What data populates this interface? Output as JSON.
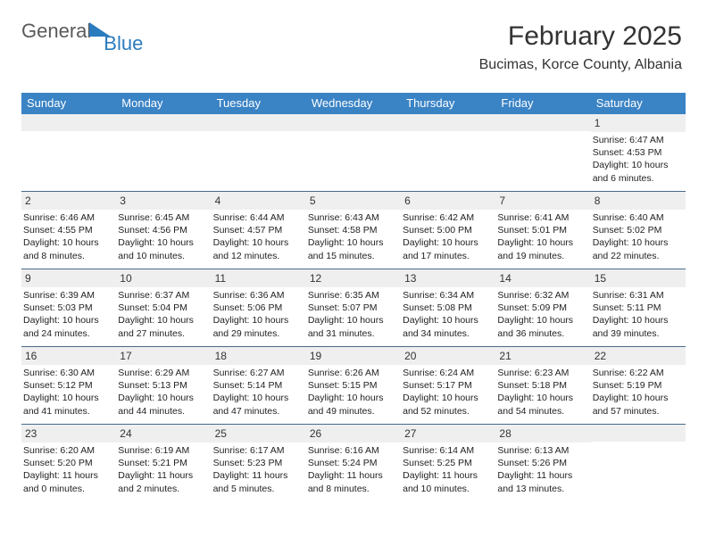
{
  "logo": {
    "general": "General",
    "blue": "Blue"
  },
  "header": {
    "month": "February 2025",
    "location": "Bucimas, Korce County, Albania"
  },
  "colors": {
    "header_bar": "#3a83c5",
    "day_num_bg": "#efefef",
    "week_border": "#4a6a8a",
    "logo_blue": "#2b7bbf",
    "text": "#333333"
  },
  "weekdays": [
    "Sunday",
    "Monday",
    "Tuesday",
    "Wednesday",
    "Thursday",
    "Friday",
    "Saturday"
  ],
  "weeks": [
    [
      null,
      null,
      null,
      null,
      null,
      null,
      {
        "n": "1",
        "sr": "Sunrise: 6:47 AM",
        "ss": "Sunset: 4:53 PM",
        "dl": "Daylight: 10 hours and 6 minutes."
      }
    ],
    [
      {
        "n": "2",
        "sr": "Sunrise: 6:46 AM",
        "ss": "Sunset: 4:55 PM",
        "dl": "Daylight: 10 hours and 8 minutes."
      },
      {
        "n": "3",
        "sr": "Sunrise: 6:45 AM",
        "ss": "Sunset: 4:56 PM",
        "dl": "Daylight: 10 hours and 10 minutes."
      },
      {
        "n": "4",
        "sr": "Sunrise: 6:44 AM",
        "ss": "Sunset: 4:57 PM",
        "dl": "Daylight: 10 hours and 12 minutes."
      },
      {
        "n": "5",
        "sr": "Sunrise: 6:43 AM",
        "ss": "Sunset: 4:58 PM",
        "dl": "Daylight: 10 hours and 15 minutes."
      },
      {
        "n": "6",
        "sr": "Sunrise: 6:42 AM",
        "ss": "Sunset: 5:00 PM",
        "dl": "Daylight: 10 hours and 17 minutes."
      },
      {
        "n": "7",
        "sr": "Sunrise: 6:41 AM",
        "ss": "Sunset: 5:01 PM",
        "dl": "Daylight: 10 hours and 19 minutes."
      },
      {
        "n": "8",
        "sr": "Sunrise: 6:40 AM",
        "ss": "Sunset: 5:02 PM",
        "dl": "Daylight: 10 hours and 22 minutes."
      }
    ],
    [
      {
        "n": "9",
        "sr": "Sunrise: 6:39 AM",
        "ss": "Sunset: 5:03 PM",
        "dl": "Daylight: 10 hours and 24 minutes."
      },
      {
        "n": "10",
        "sr": "Sunrise: 6:37 AM",
        "ss": "Sunset: 5:04 PM",
        "dl": "Daylight: 10 hours and 27 minutes."
      },
      {
        "n": "11",
        "sr": "Sunrise: 6:36 AM",
        "ss": "Sunset: 5:06 PM",
        "dl": "Daylight: 10 hours and 29 minutes."
      },
      {
        "n": "12",
        "sr": "Sunrise: 6:35 AM",
        "ss": "Sunset: 5:07 PM",
        "dl": "Daylight: 10 hours and 31 minutes."
      },
      {
        "n": "13",
        "sr": "Sunrise: 6:34 AM",
        "ss": "Sunset: 5:08 PM",
        "dl": "Daylight: 10 hours and 34 minutes."
      },
      {
        "n": "14",
        "sr": "Sunrise: 6:32 AM",
        "ss": "Sunset: 5:09 PM",
        "dl": "Daylight: 10 hours and 36 minutes."
      },
      {
        "n": "15",
        "sr": "Sunrise: 6:31 AM",
        "ss": "Sunset: 5:11 PM",
        "dl": "Daylight: 10 hours and 39 minutes."
      }
    ],
    [
      {
        "n": "16",
        "sr": "Sunrise: 6:30 AM",
        "ss": "Sunset: 5:12 PM",
        "dl": "Daylight: 10 hours and 41 minutes."
      },
      {
        "n": "17",
        "sr": "Sunrise: 6:29 AM",
        "ss": "Sunset: 5:13 PM",
        "dl": "Daylight: 10 hours and 44 minutes."
      },
      {
        "n": "18",
        "sr": "Sunrise: 6:27 AM",
        "ss": "Sunset: 5:14 PM",
        "dl": "Daylight: 10 hours and 47 minutes."
      },
      {
        "n": "19",
        "sr": "Sunrise: 6:26 AM",
        "ss": "Sunset: 5:15 PM",
        "dl": "Daylight: 10 hours and 49 minutes."
      },
      {
        "n": "20",
        "sr": "Sunrise: 6:24 AM",
        "ss": "Sunset: 5:17 PM",
        "dl": "Daylight: 10 hours and 52 minutes."
      },
      {
        "n": "21",
        "sr": "Sunrise: 6:23 AM",
        "ss": "Sunset: 5:18 PM",
        "dl": "Daylight: 10 hours and 54 minutes."
      },
      {
        "n": "22",
        "sr": "Sunrise: 6:22 AM",
        "ss": "Sunset: 5:19 PM",
        "dl": "Daylight: 10 hours and 57 minutes."
      }
    ],
    [
      {
        "n": "23",
        "sr": "Sunrise: 6:20 AM",
        "ss": "Sunset: 5:20 PM",
        "dl": "Daylight: 11 hours and 0 minutes."
      },
      {
        "n": "24",
        "sr": "Sunrise: 6:19 AM",
        "ss": "Sunset: 5:21 PM",
        "dl": "Daylight: 11 hours and 2 minutes."
      },
      {
        "n": "25",
        "sr": "Sunrise: 6:17 AM",
        "ss": "Sunset: 5:23 PM",
        "dl": "Daylight: 11 hours and 5 minutes."
      },
      {
        "n": "26",
        "sr": "Sunrise: 6:16 AM",
        "ss": "Sunset: 5:24 PM",
        "dl": "Daylight: 11 hours and 8 minutes."
      },
      {
        "n": "27",
        "sr": "Sunrise: 6:14 AM",
        "ss": "Sunset: 5:25 PM",
        "dl": "Daylight: 11 hours and 10 minutes."
      },
      {
        "n": "28",
        "sr": "Sunrise: 6:13 AM",
        "ss": "Sunset: 5:26 PM",
        "dl": "Daylight: 11 hours and 13 minutes."
      },
      null
    ]
  ]
}
